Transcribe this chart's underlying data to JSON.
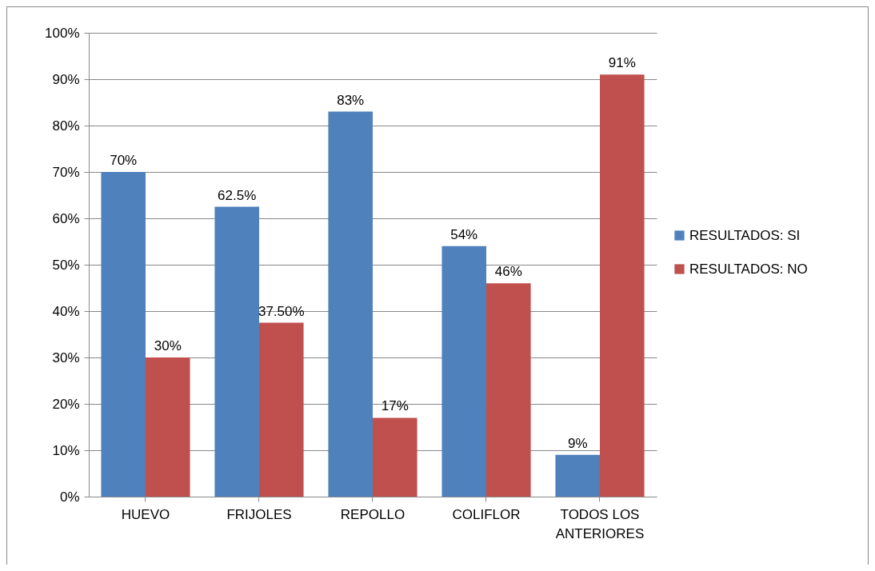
{
  "chart_data": {
    "type": "bar",
    "categories": [
      "HUEVO",
      "FRIJOLES",
      "REPOLLO",
      "COLIFLOR",
      "TODOS LOS ANTERIORES"
    ],
    "series": [
      {
        "name": "RESULTADOS: SI",
        "color": "#4f81bd",
        "values": [
          70,
          62.5,
          83,
          54,
          9
        ],
        "value_labels": [
          "70%",
          "62.5%",
          "83%",
          "54%",
          "9%"
        ]
      },
      {
        "name": "RESULTADOS: NO",
        "color": "#c0504d",
        "values": [
          30,
          37.5,
          17,
          46,
          91
        ],
        "value_labels": [
          "30%",
          "37.50%",
          "17%",
          "46%",
          "91%"
        ]
      }
    ],
    "ylim": [
      0,
      100
    ],
    "yticks": [
      {
        "value": 0,
        "label": "0%"
      },
      {
        "value": 10,
        "label": "10%"
      },
      {
        "value": 20,
        "label": "20%"
      },
      {
        "value": 30,
        "label": "30%"
      },
      {
        "value": 40,
        "label": "40%"
      },
      {
        "value": 50,
        "label": "50%"
      },
      {
        "value": 60,
        "label": "60%"
      },
      {
        "value": 70,
        "label": "70%"
      },
      {
        "value": 80,
        "label": "80%"
      },
      {
        "value": 90,
        "label": "90%"
      },
      {
        "value": 100,
        "label": "100%"
      }
    ],
    "grid": "y",
    "legend": "right"
  }
}
